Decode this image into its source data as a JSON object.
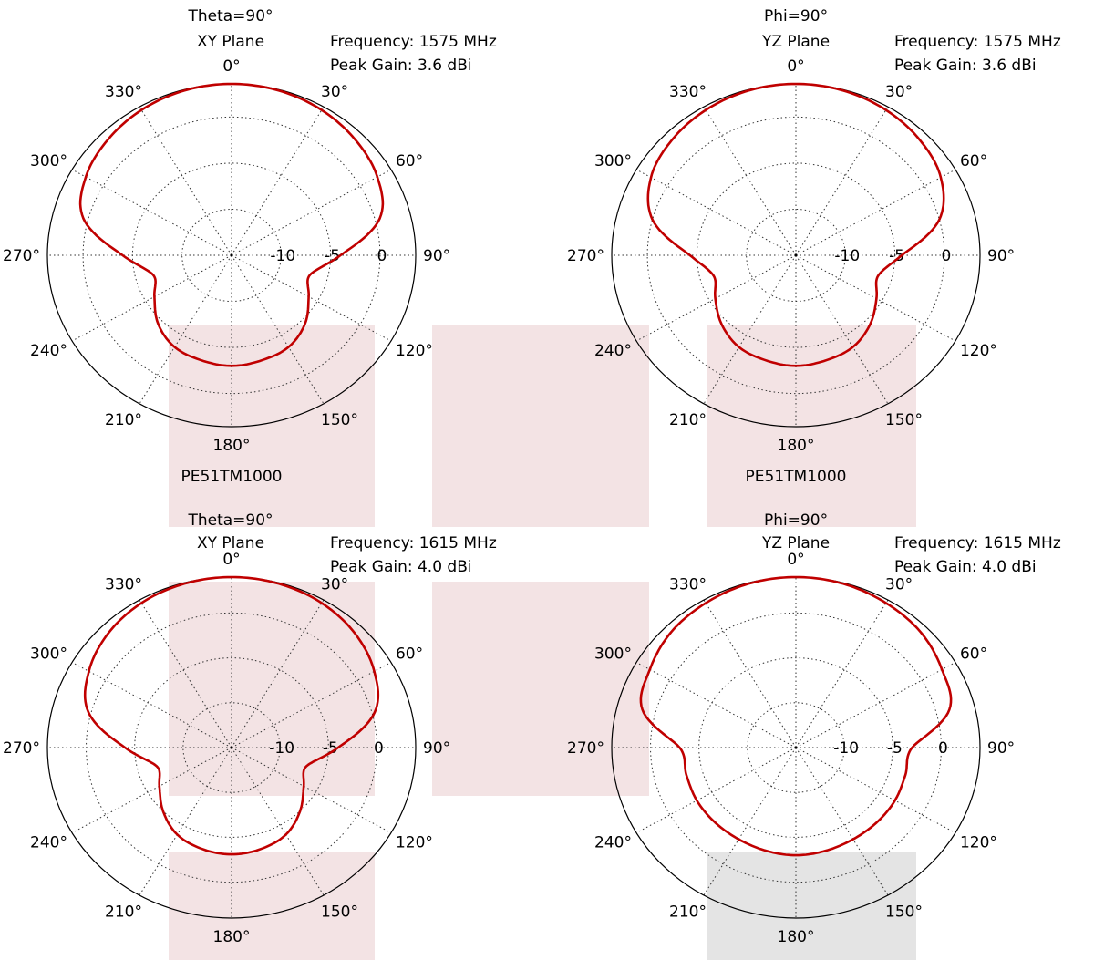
{
  "highlights": [
    {
      "color": "#f3e3e4"
    },
    {
      "color": "#f3e3e4"
    },
    {
      "color": "#f3e3e4"
    },
    {
      "color": "#f3e3e4"
    },
    {
      "color": "#f3e3e4"
    },
    {
      "color": "#f3e3e4"
    },
    {
      "color": "#e4e4e4"
    }
  ],
  "chart_data": [
    {
      "type": "polar-line",
      "plane_title": "Theta=90°",
      "plane_subtitle": "XY Plane",
      "frequency": "Frequency: 1575 MHz",
      "peak_gain": "Peak Gain: 3.6 dBi",
      "model": "PE51TM1000",
      "angle_tick_labels": [
        "0°",
        "30°",
        "60°",
        "90°",
        "120°",
        "150°",
        "180°",
        "210°",
        "240°",
        "270°",
        "300°",
        "330°"
      ],
      "radial_tick_labels": [
        "-10",
        "-5",
        "0"
      ],
      "rlim": [
        -15,
        3.6
      ],
      "line_color": "#c00000",
      "series": [
        {
          "angle_deg": [
            0,
            15,
            30,
            45,
            60,
            75,
            90,
            105,
            120,
            135,
            150,
            165,
            180,
            195,
            210,
            225,
            240,
            255,
            270,
            285,
            300,
            315,
            330,
            345
          ],
          "gain_dbi": [
            3.6,
            3.5,
            3.2,
            2.7,
            2.0,
            0.5,
            -4.0,
            -6.8,
            -6.0,
            -4.5,
            -3.5,
            -3.2,
            -3.0,
            -3.2,
            -3.5,
            -4.5,
            -6.0,
            -6.8,
            -4.0,
            0.5,
            2.0,
            2.7,
            3.2,
            3.5
          ]
        }
      ]
    },
    {
      "type": "polar-line",
      "plane_title": "Phi=90°",
      "plane_subtitle": "YZ Plane",
      "frequency": "Frequency: 1575 MHz",
      "peak_gain": "Peak Gain: 3.6 dBi",
      "model": "PE51TM1000",
      "angle_tick_labels": [
        "0°",
        "30°",
        "60°",
        "90°",
        "120°",
        "150°",
        "180°",
        "210°",
        "240°",
        "270°",
        "300°",
        "330°"
      ],
      "radial_tick_labels": [
        "-10",
        "-5",
        "0"
      ],
      "rlim": [
        -15,
        3.6
      ],
      "line_color": "#c00000",
      "series": [
        {
          "angle_deg": [
            0,
            15,
            30,
            45,
            60,
            75,
            90,
            105,
            120,
            135,
            150,
            165,
            180,
            195,
            210,
            225,
            240,
            255,
            270,
            285,
            300,
            315,
            330,
            345
          ],
          "gain_dbi": [
            3.6,
            3.5,
            3.2,
            2.7,
            1.9,
            0.0,
            -4.3,
            -6.4,
            -5.6,
            -4.4,
            -3.5,
            -3.2,
            -3.0,
            -3.2,
            -3.5,
            -4.4,
            -5.6,
            -6.4,
            -4.3,
            0.0,
            1.9,
            2.7,
            3.2,
            3.5
          ]
        }
      ]
    },
    {
      "type": "polar-line",
      "plane_title": "Theta=90°",
      "plane_subtitle": "XY Plane",
      "frequency": "Frequency: 1615 MHz",
      "peak_gain": "Peak Gain: 4.0 dBi",
      "model": "PE51TM1000",
      "angle_tick_labels": [
        "0°",
        "30°",
        "60°",
        "90°",
        "120°",
        "150°",
        "180°",
        "210°",
        "240°",
        "270°",
        "300°",
        "330°"
      ],
      "radial_tick_labels": [
        "-10",
        "-5",
        "0"
      ],
      "rlim": [
        -15,
        4.0
      ],
      "line_color": "#c00000",
      "series": [
        {
          "angle_deg": [
            0,
            15,
            30,
            45,
            60,
            75,
            90,
            105,
            120,
            135,
            150,
            165,
            180,
            195,
            210,
            225,
            240,
            255,
            270,
            285,
            300,
            315,
            330,
            345
          ],
          "gain_dbi": [
            4.0,
            3.9,
            3.6,
            3.0,
            2.0,
            0.3,
            -4.0,
            -7.0,
            -6.4,
            -5.0,
            -3.8,
            -3.3,
            -3.1,
            -3.3,
            -3.8,
            -5.0,
            -6.4,
            -7.0,
            -4.0,
            0.3,
            2.0,
            3.0,
            3.6,
            3.9
          ]
        }
      ]
    },
    {
      "type": "polar-line",
      "plane_title": "Phi=90°",
      "plane_subtitle": "YZ Plane",
      "frequency": "Frequency: 1615 MHz",
      "peak_gain": "Peak Gain: 4.0 dBi",
      "model": "PE51TM1000",
      "angle_tick_labels": [
        "0°",
        "30°",
        "60°",
        "90°",
        "120°",
        "150°",
        "180°",
        "210°",
        "240°",
        "270°",
        "300°",
        "330°"
      ],
      "radial_tick_labels": [
        "-10",
        "-5",
        "0"
      ],
      "rlim": [
        -15,
        4.0
      ],
      "line_color": "#c00000",
      "series": [
        {
          "angle_deg": [
            0,
            15,
            30,
            45,
            60,
            75,
            90,
            105,
            120,
            135,
            150,
            165,
            180,
            195,
            210,
            225,
            240,
            255,
            270,
            285,
            300,
            315,
            330,
            345
          ],
          "gain_dbi": [
            4.0,
            3.9,
            3.6,
            3.2,
            2.4,
            1.4,
            -3.0,
            -3.3,
            -3.2,
            -3.2,
            -3.2,
            -3.1,
            -3.0,
            -3.1,
            -3.2,
            -3.2,
            -3.2,
            -3.3,
            -3.0,
            1.4,
            2.4,
            3.2,
            3.6,
            3.9
          ]
        }
      ]
    }
  ]
}
